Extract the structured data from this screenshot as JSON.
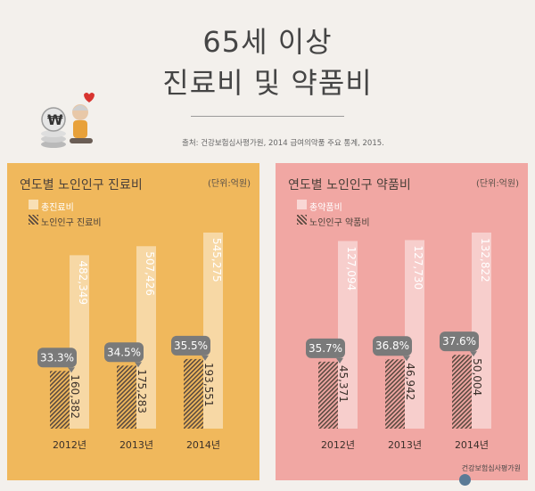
{
  "header": {
    "title_line1": "65세 이상",
    "title_line2": "진료비 및 약품비",
    "source": "출처: 건강보험심사평가원, 2014 급여의약품 주요 통계, 2015."
  },
  "footer": {
    "org": "건강보험심사평가원"
  },
  "colors": {
    "left_panel": "#f0b85c",
    "right_panel": "#f1a7a3",
    "badge": "#7a7a7a"
  },
  "chart_data": [
    {
      "type": "bar",
      "title": "연도별 노인인구 진료비",
      "unit": "(단위:억원)",
      "categories": [
        "2012년",
        "2013년",
        "2014년"
      ],
      "series": [
        {
          "name": "총진료비",
          "values": [
            482349,
            507426,
            545275
          ],
          "labels": [
            "482,349",
            "507,426",
            "545,275"
          ]
        },
        {
          "name": "노인인구 진료비",
          "values": [
            160382,
            175283,
            193551
          ],
          "labels": [
            "160,382",
            "175,283",
            "193,551"
          ]
        }
      ],
      "percentages": [
        "33.3%",
        "34.5%",
        "35.5%"
      ]
    },
    {
      "type": "bar",
      "title": "연도별 노인인구 약품비",
      "unit": "(단위:억원)",
      "categories": [
        "2012년",
        "2013년",
        "2014년"
      ],
      "series": [
        {
          "name": "총약품비",
          "values": [
            127094,
            127730,
            132822
          ],
          "labels": [
            "127,094",
            "127,730",
            "132,822"
          ]
        },
        {
          "name": "노인인구 약품비",
          "values": [
            45371,
            46942,
            50004
          ],
          "labels": [
            "45,371",
            "46,942",
            "50,004"
          ]
        }
      ],
      "percentages": [
        "35.7%",
        "36.8%",
        "37.6%"
      ]
    }
  ]
}
